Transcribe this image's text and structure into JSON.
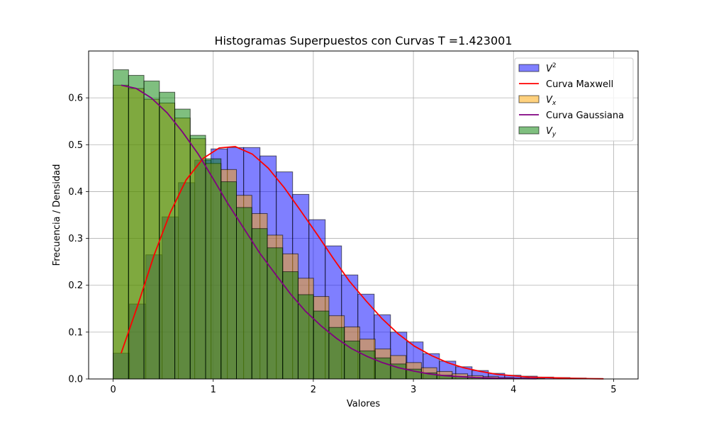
{
  "chart_data": {
    "type": "bar",
    "title": "Histogramas Superpuestos con Curvas T =1.423001",
    "xlabel": "Valores",
    "ylabel": "Frecuencia / Densidad",
    "xlim": [
      -0.245,
      5.245
    ],
    "ylim": [
      0,
      0.7
    ],
    "xticks": [
      0,
      1,
      2,
      3,
      4,
      5
    ],
    "yticks": [
      0.0,
      0.1,
      0.2,
      0.3,
      0.4,
      0.5,
      0.6
    ],
    "grid": true,
    "legend_position": "top-right",
    "bin_width": 0.163,
    "histograms": [
      {
        "name": "$V^2$",
        "legend_base": "V",
        "legend_sup": "2",
        "legend_sub": "",
        "color": "#0000ff",
        "alpha": 0.5,
        "edge": "#000000",
        "x0": 0.0,
        "bin_width": 0.163,
        "values": [
          0.055,
          0.16,
          0.265,
          0.346,
          0.419,
          0.467,
          0.491,
          0.494,
          0.494,
          0.476,
          0.442,
          0.394,
          0.34,
          0.284,
          0.222,
          0.181,
          0.137,
          0.1,
          0.079,
          0.054,
          0.038,
          0.026,
          0.018,
          0.012,
          0.008,
          0.006,
          0.004,
          0.003,
          0.002,
          0.001
        ]
      },
      {
        "name": "$V_x$",
        "legend_base": "V",
        "legend_sup": "",
        "legend_sub": "x",
        "color": "#ffa500",
        "alpha": 0.5,
        "edge": "#000000",
        "x0": 0.0,
        "bin_width": 0.154,
        "values": [
          0.627,
          0.62,
          0.597,
          0.589,
          0.557,
          0.513,
          0.46,
          0.447,
          0.392,
          0.353,
          0.307,
          0.267,
          0.215,
          0.176,
          0.135,
          0.111,
          0.085,
          0.064,
          0.05,
          0.035,
          0.024,
          0.016,
          0.011,
          0.007,
          0.005,
          0.003,
          0.002,
          0.001
        ]
      },
      {
        "name": "$V_y$",
        "legend_base": "V",
        "legend_sup": "",
        "legend_sub": "y",
        "color": "#008000",
        "alpha": 0.5,
        "edge": "#000000",
        "x0": 0.0,
        "bin_width": 0.154,
        "values": [
          0.66,
          0.648,
          0.636,
          0.612,
          0.576,
          0.52,
          0.47,
          0.421,
          0.366,
          0.321,
          0.28,
          0.229,
          0.18,
          0.145,
          0.11,
          0.081,
          0.06,
          0.045,
          0.032,
          0.021,
          0.013,
          0.008,
          0.005,
          0.003,
          0.002,
          0.001
        ]
      }
    ],
    "curves": [
      {
        "name": "Curva Maxwell",
        "color": "#ff0000",
        "x": [
          0.08,
          0.25,
          0.41,
          0.57,
          0.73,
          0.9,
          1.06,
          1.22,
          1.39,
          1.55,
          1.71,
          1.87,
          2.04,
          2.2,
          2.36,
          2.53,
          2.69,
          2.85,
          3.01,
          3.18,
          3.34,
          3.5,
          3.67,
          3.83,
          3.99,
          4.15,
          4.32,
          4.48,
          4.64,
          4.81,
          4.9
        ],
        "y": [
          0.055,
          0.16,
          0.265,
          0.355,
          0.425,
          0.471,
          0.493,
          0.496,
          0.48,
          0.45,
          0.408,
          0.36,
          0.308,
          0.257,
          0.209,
          0.166,
          0.128,
          0.096,
          0.07,
          0.05,
          0.035,
          0.024,
          0.016,
          0.01,
          0.007,
          0.004,
          0.003,
          0.002,
          0.001,
          0.0005,
          0.0003
        ]
      },
      {
        "name": "Curva Gaussiana",
        "color": "#800080",
        "x": [
          0.08,
          0.23,
          0.38,
          0.54,
          0.69,
          0.85,
          1.0,
          1.15,
          1.31,
          1.46,
          1.62,
          1.77,
          1.92,
          2.08,
          2.23,
          2.38,
          2.54,
          2.69,
          2.85,
          3.0,
          3.15,
          3.31,
          3.46,
          3.62,
          3.77,
          3.92,
          4.08,
          4.23
        ],
        "y": [
          0.627,
          0.62,
          0.6,
          0.568,
          0.528,
          0.48,
          0.427,
          0.373,
          0.32,
          0.27,
          0.224,
          0.182,
          0.145,
          0.113,
          0.087,
          0.065,
          0.048,
          0.035,
          0.024,
          0.017,
          0.011,
          0.007,
          0.005,
          0.003,
          0.002,
          0.001,
          0.0006,
          0.0004
        ]
      }
    ],
    "legend_order": [
      "$V^2$",
      "Curva Maxwell",
      "$V_x$",
      "Curva Gaussiana",
      "$V_y$"
    ]
  }
}
